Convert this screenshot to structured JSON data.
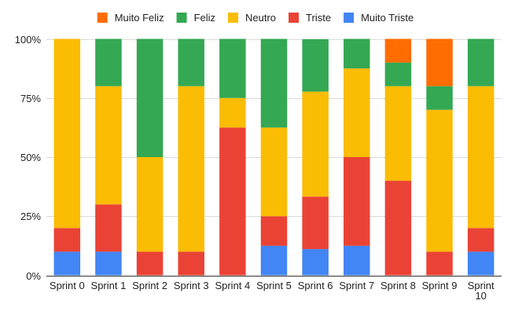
{
  "chart_data": {
    "type": "bar",
    "stacked": "percent",
    "title": "",
    "xlabel": "",
    "ylabel": "",
    "ylim": [
      0,
      100
    ],
    "yticks": [
      "0%",
      "25%",
      "50%",
      "75%",
      "100%"
    ],
    "grid": true,
    "legend_position": "top",
    "categories": [
      "Sprint 0",
      "Sprint 1",
      "Sprint 2",
      "Sprint 3",
      "Sprint 4",
      "Sprint 5",
      "Sprint 6",
      "Sprint 7",
      "Sprint 8",
      "Sprint 9",
      "Sprint 10"
    ],
    "legend_order": [
      "Muito Feliz",
      "Feliz",
      "Neutro",
      "Triste",
      "Muito Triste"
    ],
    "series": [
      {
        "name": "Muito Triste",
        "color": "#4285F4",
        "values": [
          10,
          10,
          0,
          0,
          0,
          12.5,
          11.1,
          12.5,
          0,
          0,
          10
        ]
      },
      {
        "name": "Triste",
        "color": "#EA4335",
        "values": [
          10,
          20,
          10,
          10,
          62.5,
          12.5,
          22.2,
          37.5,
          40,
          10,
          10
        ]
      },
      {
        "name": "Neutro",
        "color": "#FBBC04",
        "values": [
          80,
          50,
          40,
          70,
          12.5,
          37.5,
          44.4,
          37.5,
          40,
          60,
          60
        ]
      },
      {
        "name": "Feliz",
        "color": "#34A853",
        "values": [
          0,
          20,
          50,
          20,
          25,
          37.5,
          22.2,
          12.5,
          10,
          10,
          20
        ]
      },
      {
        "name": "Muito Feliz",
        "color": "#FF6D01",
        "values": [
          0,
          0,
          0,
          0,
          0,
          0,
          0,
          0,
          10,
          20,
          0
        ]
      }
    ]
  }
}
